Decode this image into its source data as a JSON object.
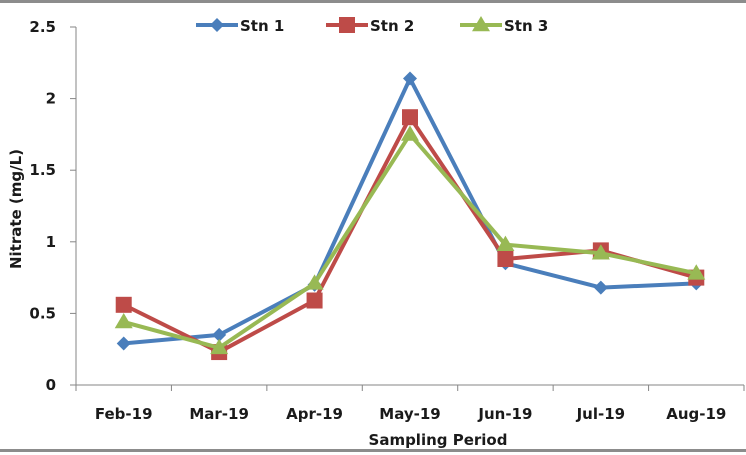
{
  "chart_data": {
    "type": "line",
    "title": "",
    "xlabel": "Sampling Period",
    "ylabel": "Nitrate (mg/L)",
    "categories": [
      "Feb-19",
      "Mar-19",
      "Apr-19",
      "May-19",
      "Jun-19",
      "Jul-19",
      "Aug-19"
    ],
    "ylim": [
      0,
      2.5
    ],
    "yticks": [
      0,
      0.5,
      1,
      1.5,
      2,
      2.5
    ],
    "ytick_labels": [
      "0",
      "0.5",
      "1",
      "1.5",
      "2",
      "2.5"
    ],
    "grid": false,
    "legend_position": "top-center",
    "series": [
      {
        "name": "Stn 1",
        "color": "#4a7ebb",
        "marker": "diamond",
        "values": [
          0.29,
          0.35,
          0.7,
          2.14,
          0.85,
          0.68,
          0.71
        ]
      },
      {
        "name": "Stn 2",
        "color": "#be4b48",
        "marker": "square",
        "values": [
          0.56,
          0.23,
          0.59,
          1.87,
          0.88,
          0.94,
          0.75
        ]
      },
      {
        "name": "Stn 3",
        "color": "#98b954",
        "marker": "triangle",
        "values": [
          0.44,
          0.26,
          0.71,
          1.75,
          0.98,
          0.92,
          0.78
        ]
      }
    ]
  }
}
